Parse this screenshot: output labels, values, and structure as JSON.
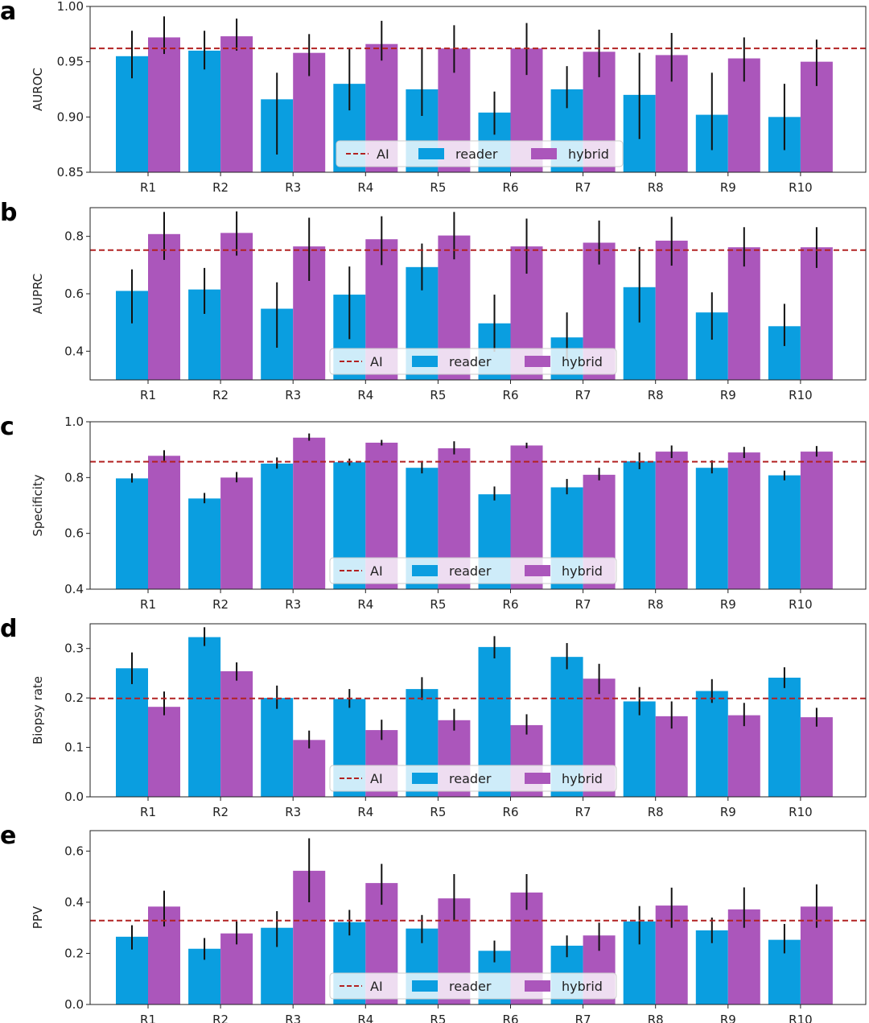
{
  "colors": {
    "reader": "#0a9ee0",
    "hybrid": "#ab56bb",
    "ai": "#b22222",
    "error": "#111111"
  },
  "chart_data": [
    {
      "type": "bar",
      "panel": "a",
      "ylabel": "AUROC",
      "ylim": [
        0.85,
        1.0
      ],
      "yticks": [
        "0.85",
        "0.90",
        "0.95",
        "1.00"
      ],
      "ytick_values": [
        0.85,
        0.9,
        0.95,
        1.0
      ],
      "categories": [
        "R1",
        "R2",
        "R3",
        "R4",
        "R5",
        "R6",
        "R7",
        "R8",
        "R9",
        "R10"
      ],
      "ai_value": 0.962,
      "legend": {
        "ai": "AI",
        "reader": "reader",
        "hybrid": "hybrid"
      },
      "series": [
        {
          "name": "reader",
          "values": [
            0.955,
            0.96,
            0.916,
            0.93,
            0.925,
            0.904,
            0.925,
            0.92,
            0.902,
            0.9
          ],
          "err_low": [
            0.935,
            0.943,
            0.866,
            0.906,
            0.901,
            0.884,
            0.908,
            0.88,
            0.87,
            0.87
          ],
          "err_high": [
            0.978,
            0.978,
            0.94,
            0.962,
            0.963,
            0.923,
            0.946,
            0.958,
            0.94,
            0.93
          ]
        },
        {
          "name": "hybrid",
          "values": [
            0.972,
            0.973,
            0.958,
            0.966,
            0.962,
            0.962,
            0.959,
            0.956,
            0.953,
            0.95
          ],
          "err_low": [
            0.957,
            0.96,
            0.937,
            0.951,
            0.94,
            0.938,
            0.936,
            0.932,
            0.932,
            0.928
          ],
          "err_high": [
            0.991,
            0.989,
            0.975,
            0.987,
            0.983,
            0.985,
            0.979,
            0.976,
            0.972,
            0.97
          ]
        }
      ]
    },
    {
      "type": "bar",
      "panel": "b",
      "ylabel": "AUPRC",
      "ylim": [
        0.3,
        0.9
      ],
      "yticks": [
        "0.4",
        "0.6",
        "0.8"
      ],
      "ytick_values": [
        0.4,
        0.6,
        0.8
      ],
      "categories": [
        "R1",
        "R2",
        "R3",
        "R4",
        "R5",
        "R6",
        "R7",
        "R8",
        "R9",
        "R10"
      ],
      "ai_value": 0.752,
      "legend": {
        "ai": "AI",
        "reader": "reader",
        "hybrid": "hybrid"
      },
      "series": [
        {
          "name": "reader",
          "values": [
            0.61,
            0.615,
            0.548,
            0.597,
            0.693,
            0.497,
            0.448,
            0.623,
            0.535,
            0.487
          ],
          "err_low": [
            0.497,
            0.53,
            0.412,
            0.442,
            0.612,
            0.398,
            0.37,
            0.5,
            0.44,
            0.418
          ],
          "err_high": [
            0.685,
            0.69,
            0.64,
            0.695,
            0.775,
            0.597,
            0.535,
            0.763,
            0.605,
            0.565
          ]
        },
        {
          "name": "hybrid",
          "values": [
            0.808,
            0.812,
            0.765,
            0.79,
            0.803,
            0.765,
            0.778,
            0.785,
            0.762,
            0.762
          ],
          "err_low": [
            0.718,
            0.733,
            0.645,
            0.7,
            0.72,
            0.67,
            0.702,
            0.698,
            0.695,
            0.69
          ],
          "err_high": [
            0.885,
            0.887,
            0.865,
            0.87,
            0.885,
            0.862,
            0.855,
            0.868,
            0.832,
            0.832
          ]
        }
      ]
    },
    {
      "type": "bar",
      "panel": "c",
      "ylabel": "Specificity",
      "ylim": [
        0.4,
        1.0
      ],
      "yticks": [
        "0.4",
        "0.6",
        "0.8",
        "1.0"
      ],
      "ytick_values": [
        0.4,
        0.6,
        0.8,
        1.0
      ],
      "categories": [
        "R1",
        "R2",
        "R3",
        "R4",
        "R5",
        "R6",
        "R7",
        "R8",
        "R9",
        "R10"
      ],
      "ai_value": 0.857,
      "legend": {
        "ai": "AI",
        "reader": "reader",
        "hybrid": "hybrid"
      },
      "series": [
        {
          "name": "reader",
          "values": [
            0.797,
            0.725,
            0.85,
            0.855,
            0.835,
            0.74,
            0.765,
            0.858,
            0.835,
            0.808
          ],
          "err_low": [
            0.782,
            0.708,
            0.832,
            0.843,
            0.815,
            0.718,
            0.74,
            0.83,
            0.815,
            0.79
          ],
          "err_high": [
            0.815,
            0.745,
            0.872,
            0.868,
            0.86,
            0.768,
            0.795,
            0.89,
            0.862,
            0.825
          ]
        },
        {
          "name": "hybrid",
          "values": [
            0.878,
            0.8,
            0.943,
            0.925,
            0.905,
            0.915,
            0.81,
            0.893,
            0.89,
            0.893
          ],
          "err_low": [
            0.86,
            0.783,
            0.932,
            0.915,
            0.883,
            0.905,
            0.79,
            0.87,
            0.87,
            0.875
          ],
          "err_high": [
            0.898,
            0.82,
            0.958,
            0.935,
            0.93,
            0.925,
            0.835,
            0.915,
            0.91,
            0.913
          ]
        }
      ]
    },
    {
      "type": "bar",
      "panel": "d",
      "ylabel": "Biopsy rate",
      "ylim": [
        0.0,
        0.35
      ],
      "yticks": [
        "0.0",
        "0.1",
        "0.2",
        "0.3"
      ],
      "ytick_values": [
        0.0,
        0.1,
        0.2,
        0.3
      ],
      "categories": [
        "R1",
        "R2",
        "R3",
        "R4",
        "R5",
        "R6",
        "R7",
        "R8",
        "R9",
        "R10"
      ],
      "ai_value": 0.199,
      "legend": {
        "ai": "AI",
        "reader": "reader",
        "hybrid": "hybrid"
      },
      "series": [
        {
          "name": "reader",
          "values": [
            0.26,
            0.323,
            0.2,
            0.198,
            0.218,
            0.303,
            0.283,
            0.193,
            0.214,
            0.241
          ],
          "err_low": [
            0.228,
            0.305,
            0.178,
            0.18,
            0.196,
            0.28,
            0.258,
            0.165,
            0.19,
            0.22
          ],
          "err_high": [
            0.292,
            0.343,
            0.225,
            0.218,
            0.242,
            0.325,
            0.311,
            0.222,
            0.238,
            0.262
          ]
        },
        {
          "name": "hybrid",
          "values": [
            0.182,
            0.254,
            0.115,
            0.135,
            0.155,
            0.145,
            0.239,
            0.163,
            0.165,
            0.161
          ],
          "err_low": [
            0.165,
            0.235,
            0.098,
            0.115,
            0.134,
            0.126,
            0.208,
            0.138,
            0.143,
            0.142
          ],
          "err_high": [
            0.213,
            0.272,
            0.134,
            0.156,
            0.178,
            0.167,
            0.269,
            0.193,
            0.19,
            0.18
          ]
        }
      ]
    },
    {
      "type": "bar",
      "panel": "e",
      "ylabel": "PPV",
      "ylim": [
        0.0,
        0.68
      ],
      "yticks": [
        "0.0",
        "0.2",
        "0.4",
        "0.6"
      ],
      "ytick_values": [
        0.0,
        0.2,
        0.4,
        0.6
      ],
      "categories": [
        "R1",
        "R2",
        "R3",
        "R4",
        "R5",
        "R6",
        "R7",
        "R8",
        "R9",
        "R10"
      ],
      "ai_value": 0.328,
      "legend": {
        "ai": "AI",
        "reader": "reader",
        "hybrid": "hybrid"
      },
      "series": [
        {
          "name": "reader",
          "values": [
            0.265,
            0.218,
            0.3,
            0.322,
            0.297,
            0.21,
            0.23,
            0.325,
            0.29,
            0.253
          ],
          "err_low": [
            0.215,
            0.175,
            0.225,
            0.27,
            0.24,
            0.165,
            0.185,
            0.235,
            0.24,
            0.2
          ],
          "err_high": [
            0.31,
            0.26,
            0.365,
            0.37,
            0.35,
            0.25,
            0.27,
            0.385,
            0.34,
            0.315
          ]
        },
        {
          "name": "hybrid",
          "values": [
            0.383,
            0.278,
            0.523,
            0.475,
            0.415,
            0.438,
            0.27,
            0.387,
            0.372,
            0.383
          ],
          "err_low": [
            0.305,
            0.235,
            0.4,
            0.39,
            0.33,
            0.37,
            0.21,
            0.3,
            0.3,
            0.3
          ],
          "err_high": [
            0.445,
            0.325,
            0.65,
            0.55,
            0.51,
            0.51,
            0.32,
            0.457,
            0.458,
            0.47
          ]
        }
      ]
    }
  ]
}
